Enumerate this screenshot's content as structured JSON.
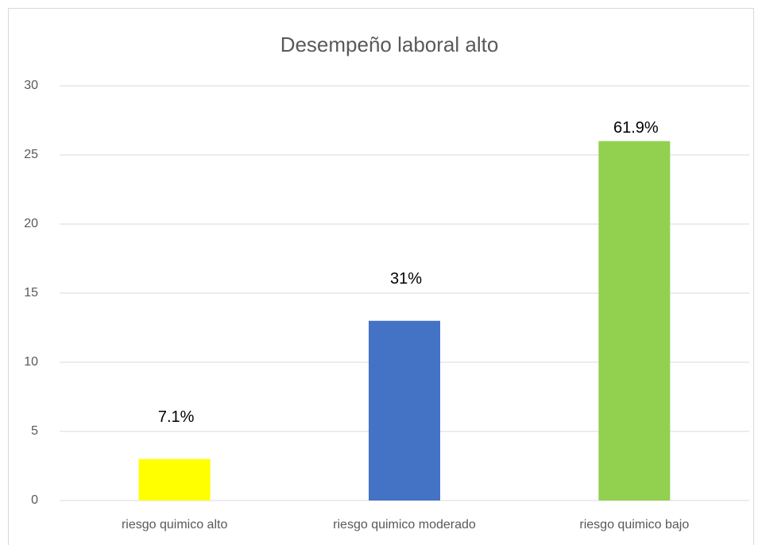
{
  "chart_data": {
    "type": "bar",
    "title": "Desempeño laboral alto",
    "categories": [
      "riesgo quimico alto",
      "riesgo quimico moderado",
      "riesgo quimico bajo"
    ],
    "values": [
      3,
      13,
      26
    ],
    "colors": [
      "#ffff00",
      "#4472c4",
      "#92d050"
    ],
    "annotations": [
      "7.1%",
      "31%",
      "61.9%"
    ],
    "ylim": [
      0,
      30
    ],
    "yticks": [
      0,
      5,
      10,
      15,
      20,
      25,
      30
    ],
    "grid": true
  }
}
